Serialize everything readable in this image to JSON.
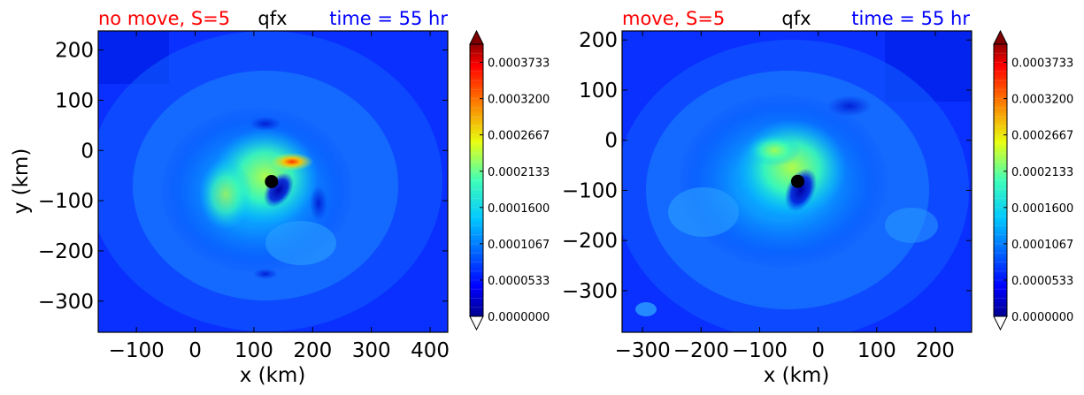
{
  "chart_data": [
    {
      "type": "heatmap",
      "title_left": "no move, S=5",
      "title_center": "qfx",
      "title_right": "time = 55 hr",
      "title_left_color": "#ff0000",
      "title_right_color": "#0000ff",
      "xlabel": "x (km)",
      "ylabel": "y (km)",
      "xlim": [
        -165,
        430
      ],
      "ylim": [
        -362,
        238
      ],
      "xticks": [
        -100,
        0,
        100,
        200,
        300,
        400
      ],
      "xtick_labels": [
        "−100",
        "0",
        "100",
        "200",
        "300",
        "400"
      ],
      "yticks": [
        200,
        100,
        0,
        -100,
        -200,
        -300
      ],
      "ytick_labels": [
        "200",
        "100",
        "0",
        "−100",
        "−200",
        "−300"
      ],
      "center_marker": {
        "x": 130,
        "y": -62
      },
      "colorbar": {
        "ticks": [
          "0.0000000",
          "0.0000533",
          "0.0001067",
          "0.0001600",
          "0.0002133",
          "0.0002667",
          "0.0003200",
          "0.0003733"
        ],
        "min": 0.0,
        "max": 0.0004,
        "extend": "both"
      }
    },
    {
      "type": "heatmap",
      "title_left": "move, S=5",
      "title_center": "qfx",
      "title_right": "time = 55 hr",
      "title_left_color": "#ff0000",
      "title_right_color": "#0000ff",
      "xlabel": "x (km)",
      "ylabel": "",
      "xlim": [
        -335,
        262
      ],
      "ylim": [
        -383,
        218
      ],
      "xticks": [
        -300,
        -200,
        -100,
        0,
        100,
        200
      ],
      "xtick_labels": [
        "−300",
        "−200",
        "−100",
        "0",
        "100",
        "200"
      ],
      "yticks": [
        200,
        100,
        0,
        -100,
        -200,
        -300
      ],
      "ytick_labels": [
        "200",
        "100",
        "0",
        "−100",
        "−200",
        "−300"
      ],
      "center_marker": {
        "x": -35,
        "y": -82
      },
      "colorbar": {
        "ticks": [
          "0.0000000",
          "0.0000533",
          "0.0001067",
          "0.0001600",
          "0.0002133",
          "0.0002667",
          "0.0003200",
          "0.0003733"
        ],
        "min": 0.0,
        "max": 0.0004,
        "extend": "both"
      }
    }
  ]
}
